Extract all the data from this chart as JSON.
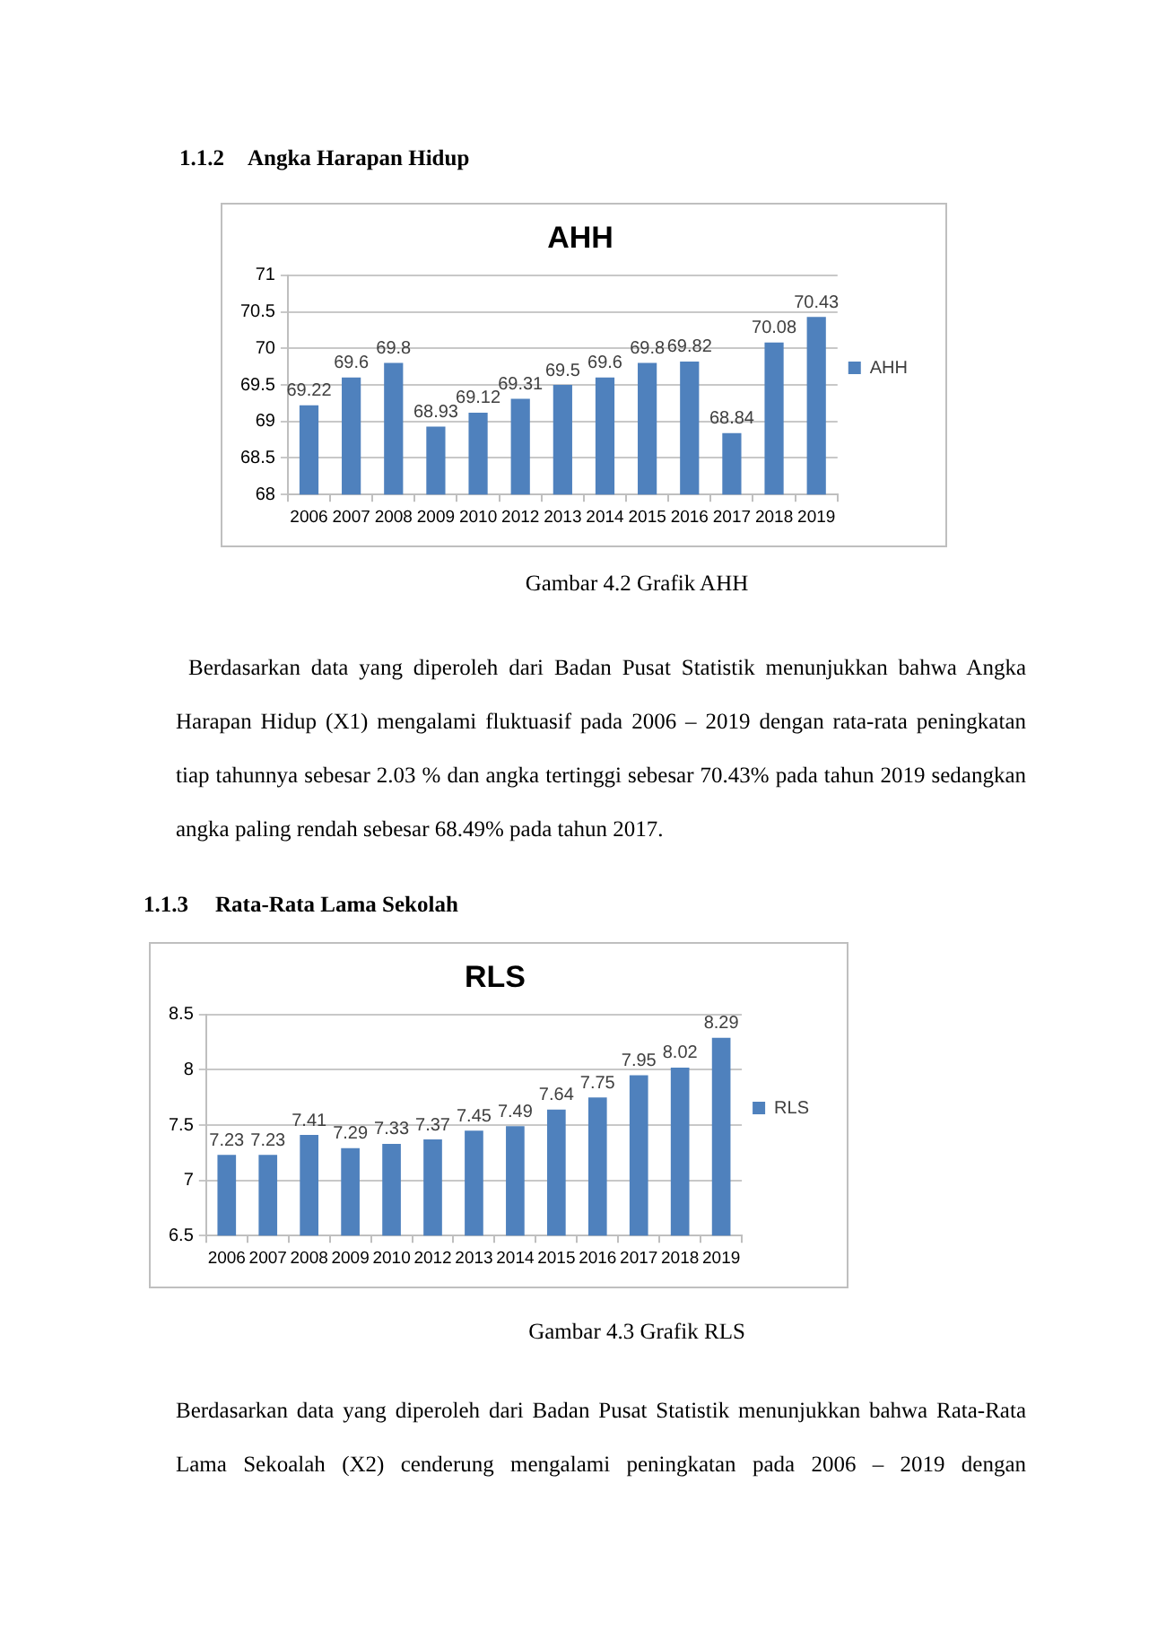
{
  "chart_data": [
    {
      "type": "bar",
      "title": "AHH",
      "categories": [
        "2006",
        "2007",
        "2008",
        "2009",
        "2010",
        "2012",
        "2013",
        "2014",
        "2015",
        "2016",
        "2017",
        "2018",
        "2019"
      ],
      "series": [
        {
          "name": "AHH",
          "color": "#4f81bd",
          "values": [
            69.22,
            69.6,
            69.8,
            68.93,
            69.12,
            69.31,
            69.5,
            69.6,
            69.8,
            69.82,
            68.84,
            70.08,
            70.43
          ]
        }
      ],
      "ylim": [
        68,
        71
      ],
      "yticks": [
        68,
        68.5,
        69,
        69.5,
        70,
        70.5,
        71
      ],
      "grid": "y",
      "legend": "right",
      "data_labels": true,
      "annotations": [
        "1.1.2 Angka Harapan Hidup",
        "Gambar 4.2 Grafik AHH",
        "Berdasarkan data yang diperoleh dari Badan Pusat Statistik menunjukkan bahwa Angka Harapan Hidup (X1) mengalami fluktuasif pada 2006 – 2019 dengan rata-rata peningkatan tiap tahunnya sebesar 2.03 % dan angka tertinggi sebesar 70.43% pada tahun 2019 sedangkan angka paling rendah sebesar 68.49% pada tahun 2017."
      ]
    },
    {
      "type": "bar",
      "title": "RLS",
      "categories": [
        "2006",
        "2007",
        "2008",
        "2009",
        "2010",
        "2012",
        "2013",
        "2014",
        "2015",
        "2016",
        "2017",
        "2018",
        "2019"
      ],
      "series": [
        {
          "name": "RLS",
          "color": "#4f81bd",
          "values": [
            7.23,
            7.23,
            7.41,
            7.29,
            7.33,
            7.37,
            7.45,
            7.49,
            7.64,
            7.75,
            7.95,
            8.02,
            8.29
          ]
        }
      ],
      "ylim": [
        6.5,
        8.5
      ],
      "yticks": [
        6.5,
        7,
        7.5,
        8,
        8.5
      ],
      "grid": "y",
      "legend": "right",
      "data_labels": true,
      "annotations": [
        "1.1.3 Rata-Rata Lama Sekolah",
        "Gambar 4.3 Grafik RLS",
        "Berdasarkan data yang diperoleh dari Badan Pusat Statistik menunjukkan bahwa Rata-Rata Lama Sekoalah (X2) cenderung mengalami peningkatan pada 2006 – 2019 dengan"
      ]
    }
  ]
}
